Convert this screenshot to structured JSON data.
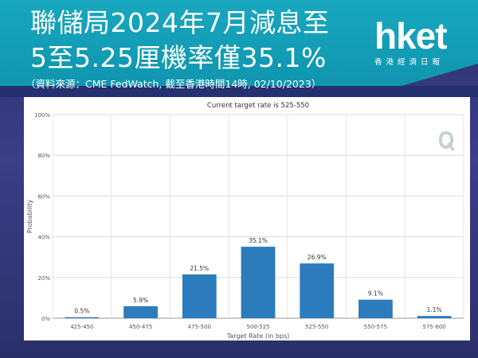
{
  "header": {
    "title_line1": "聯儲局2024年7月減息至",
    "title_line2": "5至5.25厘機率僅35.1%",
    "source": "（資料來源：CME FedWatch, 截至香港時間14時, 02/10/2023）"
  },
  "logo": {
    "main": "hket",
    "sub": "香港經濟日報"
  },
  "colors": {
    "header": "#1aa6bd",
    "background": "#2e3370",
    "bar": "#2b7bbd"
  },
  "chart_data": {
    "type": "bar",
    "title": "Current target rate is 525-550",
    "xlabel": "Target Rate (in bps)",
    "ylabel": "Probability",
    "categories": [
      "425-450",
      "450-475",
      "475-500",
      "500-525",
      "525-550",
      "550-575",
      "575-600"
    ],
    "values": [
      0.5,
      5.9,
      21.5,
      35.1,
      26.9,
      9.1,
      1.1
    ],
    "value_labels": [
      "0.5%",
      "5.9%",
      "21.5%",
      "35.1%",
      "26.9%",
      "9.1%",
      "1.1%"
    ],
    "yticks": [
      0,
      20,
      40,
      60,
      80,
      100
    ],
    "ytick_labels": [
      "0%",
      "20%",
      "40%",
      "60%",
      "80%",
      "100%"
    ],
    "ylim": [
      0,
      100
    ],
    "grid": true,
    "legend": "none"
  }
}
